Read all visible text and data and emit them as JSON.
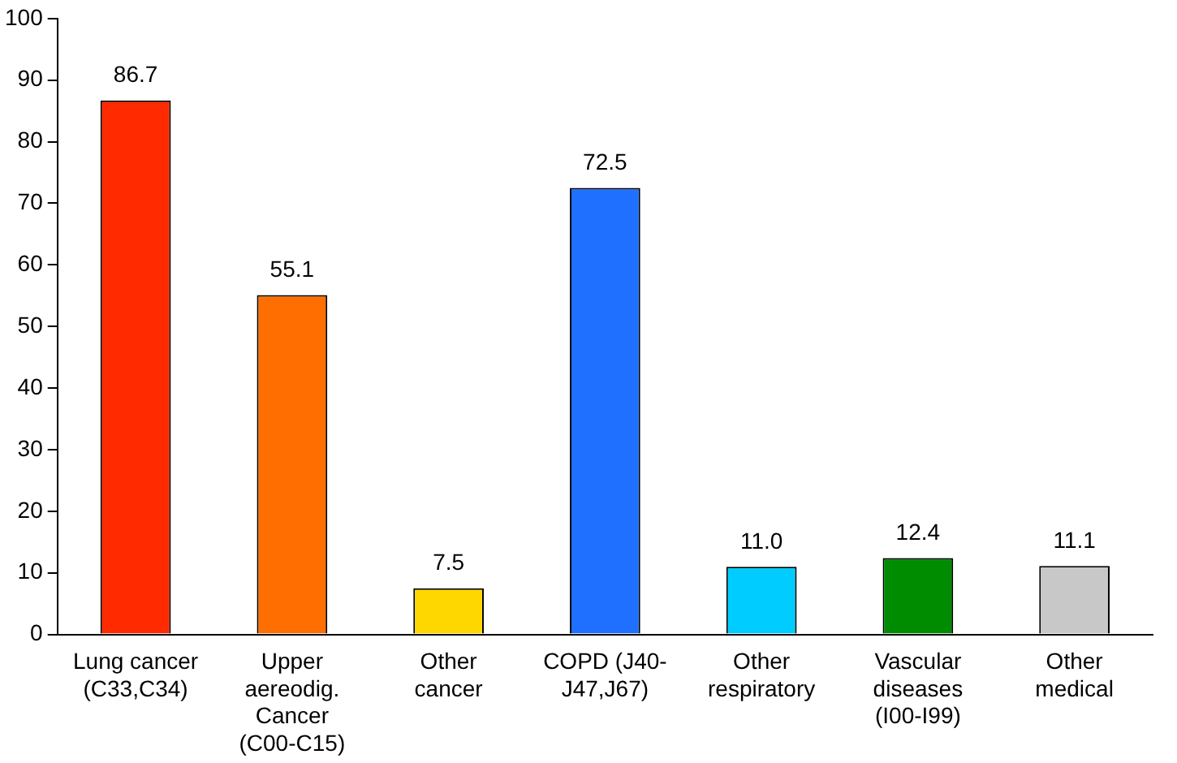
{
  "chart_data": {
    "type": "bar",
    "categories": [
      "Lung cancer\n(C33,C34)",
      "Upper\naereodig.\nCancer\n(C00-C15)",
      "Other\ncancer",
      "COPD (J40-\nJ47,J67)",
      "Other\nrespiratory",
      "Vascular\ndiseases\n(I00-I99)",
      "Other\nmedical"
    ],
    "values": [
      86.7,
      55.1,
      7.5,
      72.5,
      11.0,
      12.4,
      11.1
    ],
    "value_labels": [
      "86.7",
      "55.1",
      "7.5",
      "72.5",
      "11.0",
      "12.4",
      "11.1"
    ],
    "colors": [
      "#ff2a00",
      "#ff6e00",
      "#ffd700",
      "#1f70ff",
      "#00ccff",
      "#008c00",
      "#c8c8c8"
    ],
    "ylim": [
      0,
      100
    ],
    "yticks": [
      0,
      10,
      20,
      30,
      40,
      50,
      60,
      70,
      80,
      90,
      100
    ],
    "grid": false,
    "legend": false
  }
}
